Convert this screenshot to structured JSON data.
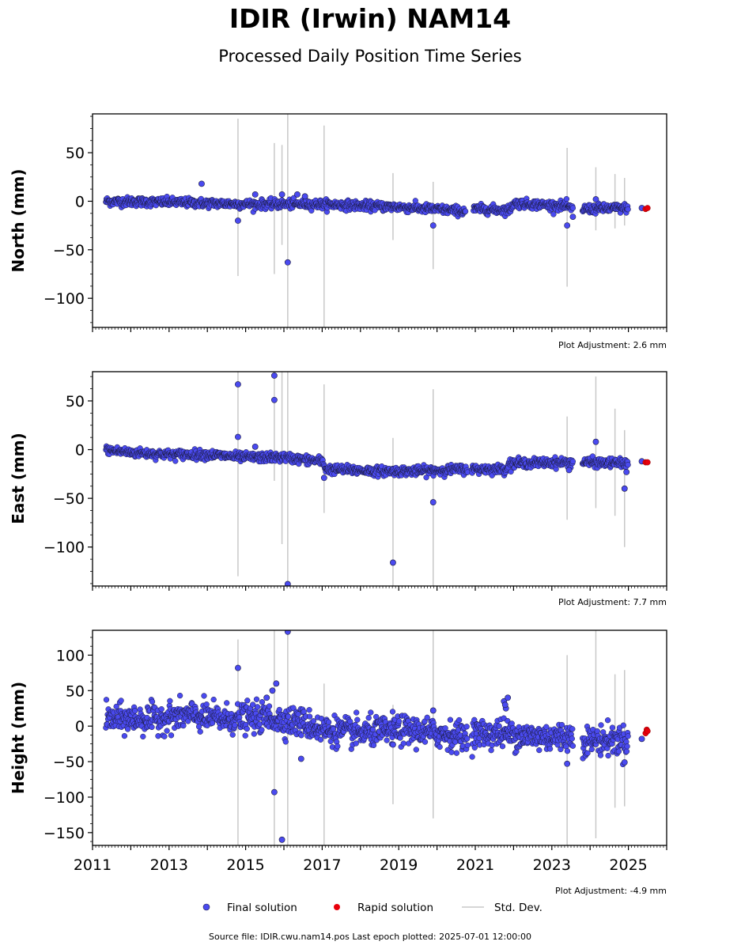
{
  "title": "IDIR (Irwin) NAM14",
  "subtitle": "Processed Daily Position Time Series",
  "footer": "Source file: IDIR.cwu.nam14.pos  Last epoch plotted: 2025-07-01 12:00:00",
  "legend": {
    "final": "Final solution",
    "rapid": "Rapid solution",
    "std": "Std. Dev."
  },
  "colors": {
    "final": "#4a4af0",
    "final_edge": "#1a1a3a",
    "rapid": "#e8000b",
    "std": "#c8c8c8"
  },
  "chart_data": [
    {
      "type": "scatter",
      "ylabel": "North (mm)",
      "adjustment": "Plot Adjustment: 2.6 mm",
      "xlim": [
        2011,
        2026
      ],
      "ylim": [
        -130,
        90
      ],
      "yticks": [
        50,
        0,
        -50,
        -100
      ],
      "ytick_labels": [
        "50",
        "0",
        "−50",
        "−100"
      ],
      "trend": [
        [
          2011.3,
          0
        ],
        [
          2013,
          -1
        ],
        [
          2015,
          -3
        ],
        [
          2017,
          -3
        ],
        [
          2019,
          -6
        ],
        [
          2020.7,
          -10
        ],
        [
          2020.9,
          -10
        ],
        [
          2021,
          -8
        ],
        [
          2021.9,
          -9
        ],
        [
          2022,
          -2
        ],
        [
          2023.4,
          -5
        ],
        [
          2023.5,
          -8
        ],
        [
          2023.8,
          -8
        ],
        [
          2025,
          -7
        ]
      ],
      "gaps": [
        [
          2020.75,
          2020.95
        ],
        [
          2023.55,
          2023.8
        ],
        [
          2025.0,
          2025.3
        ]
      ],
      "outliers": [
        [
          2013.85,
          18
        ],
        [
          2014.8,
          -20
        ],
        [
          2015.25,
          7
        ],
        [
          2015.95,
          7
        ],
        [
          2016.1,
          -63
        ],
        [
          2016.35,
          7
        ],
        [
          2016.55,
          5
        ],
        [
          2019.9,
          -25
        ],
        [
          2023.4,
          -25
        ],
        [
          2023.55,
          -16
        ],
        [
          2024.15,
          2
        ],
        [
          2025.35,
          -7
        ]
      ],
      "rapid": [
        [
          2025.45,
          -8
        ],
        [
          2025.5,
          -7
        ]
      ],
      "std_bars": [
        [
          2014.8,
          -77,
          85
        ],
        [
          2015.75,
          -75,
          60
        ],
        [
          2015.95,
          -45,
          58
        ],
        [
          2016.1,
          -130,
          90
        ],
        [
          2017.05,
          -130,
          78
        ],
        [
          2018.85,
          -40,
          29
        ],
        [
          2019.9,
          -70,
          20
        ],
        [
          2023.4,
          -88,
          55
        ],
        [
          2024.15,
          -30,
          35
        ],
        [
          2024.65,
          -28,
          28
        ],
        [
          2024.9,
          -25,
          24
        ]
      ]
    },
    {
      "type": "scatter",
      "ylabel": "East (mm)",
      "adjustment": "Plot Adjustment: 7.7 mm",
      "xlim": [
        2011,
        2026
      ],
      "ylim": [
        -140,
        80
      ],
      "yticks": [
        50,
        0,
        -50,
        -100
      ],
      "ytick_labels": [
        "50",
        "0",
        "−50",
        "−100"
      ],
      "trend": [
        [
          2011.3,
          0
        ],
        [
          2012,
          -3
        ],
        [
          2013,
          -5
        ],
        [
          2014,
          -5
        ],
        [
          2015,
          -8
        ],
        [
          2016,
          -8
        ],
        [
          2017,
          -12
        ],
        [
          2017.1,
          -20
        ],
        [
          2018.5,
          -22
        ],
        [
          2019.5,
          -22
        ],
        [
          2020.75,
          -20
        ],
        [
          2020.9,
          -20
        ],
        [
          2021.8,
          -20
        ],
        [
          2021.9,
          -14
        ],
        [
          2023.4,
          -13
        ],
        [
          2023.5,
          -13
        ],
        [
          2023.8,
          -13
        ],
        [
          2025,
          -14
        ]
      ],
      "gaps": [
        [
          2020.8,
          2020.9
        ],
        [
          2023.55,
          2023.8
        ],
        [
          2025.0,
          2025.3
        ]
      ],
      "outliers": [
        [
          2014.8,
          67
        ],
        [
          2014.8,
          13
        ],
        [
          2015.25,
          3
        ],
        [
          2015.75,
          76
        ],
        [
          2015.75,
          51
        ],
        [
          2016.1,
          -138
        ],
        [
          2018.85,
          -116
        ],
        [
          2019.9,
          -54
        ],
        [
          2017.05,
          -29
        ],
        [
          2024.15,
          8
        ],
        [
          2024.9,
          -40
        ],
        [
          2024.95,
          -23
        ],
        [
          2023.45,
          -21
        ],
        [
          2025.35,
          -12
        ]
      ],
      "rapid": [
        [
          2025.45,
          -13
        ],
        [
          2025.5,
          -13
        ]
      ],
      "std_bars": [
        [
          2014.8,
          -130,
          80
        ],
        [
          2015.75,
          -32,
          80
        ],
        [
          2015.95,
          -97,
          80
        ],
        [
          2016.1,
          -140,
          80
        ],
        [
          2017.05,
          -65,
          67
        ],
        [
          2018.85,
          -140,
          12
        ],
        [
          2019.9,
          -140,
          62
        ],
        [
          2023.4,
          -72,
          34
        ],
        [
          2024.15,
          -60,
          75
        ],
        [
          2024.65,
          -68,
          42
        ],
        [
          2024.9,
          -100,
          20
        ]
      ]
    },
    {
      "type": "scatter",
      "ylabel": "Height (mm)",
      "adjustment": "Plot Adjustment: -4.9 mm",
      "xlim": [
        2011,
        2026
      ],
      "ylim": [
        -168,
        135
      ],
      "yticks": [
        100,
        50,
        0,
        -50,
        -100,
        -150
      ],
      "ytick_labels": [
        "100",
        "50",
        "0",
        "−50",
        "−100",
        "−150"
      ],
      "xticks": [
        2011,
        2013,
        2015,
        2017,
        2019,
        2021,
        2023,
        2025
      ],
      "xtick_labels": [
        "2011",
        "2013",
        "2015",
        "2017",
        "2019",
        "2021",
        "2023",
        "2025"
      ],
      "trend": [
        [
          2011.3,
          10
        ],
        [
          2012.5,
          10
        ],
        [
          2013.5,
          15
        ],
        [
          2014.5,
          10
        ],
        [
          2015.5,
          12
        ],
        [
          2016.5,
          5
        ],
        [
          2017,
          -5
        ],
        [
          2018,
          -10
        ],
        [
          2019,
          -5
        ],
        [
          2020,
          -10
        ],
        [
          2020.75,
          -15
        ],
        [
          2020.9,
          -10
        ],
        [
          2021.8,
          -10
        ],
        [
          2022.5,
          -15
        ],
        [
          2023.4,
          -15
        ],
        [
          2023.5,
          -15
        ],
        [
          2023.8,
          -20
        ],
        [
          2025,
          -20
        ]
      ],
      "gaps": [
        [
          2020.8,
          2020.9
        ],
        [
          2023.55,
          2023.8
        ],
        [
          2025.0,
          2025.3
        ]
      ],
      "outliers": [
        [
          2014.8,
          82
        ],
        [
          2015.55,
          40
        ],
        [
          2015.8,
          60
        ],
        [
          2015.7,
          50
        ],
        [
          2016.1,
          133
        ],
        [
          2015.95,
          -160
        ],
        [
          2015.75,
          -93
        ],
        [
          2016.45,
          -46
        ],
        [
          2018.85,
          -26
        ],
        [
          2019.9,
          22
        ],
        [
          2021.75,
          35
        ],
        [
          2021.8,
          25
        ],
        [
          2021.85,
          40
        ],
        [
          2021.78,
          30
        ],
        [
          2023.4,
          -53
        ],
        [
          2024.9,
          -51
        ],
        [
          2025.35,
          -18
        ]
      ],
      "rapid": [
        [
          2025.45,
          -10
        ],
        [
          2025.48,
          -5
        ],
        [
          2025.5,
          -7
        ]
      ],
      "std_bars": [
        [
          2014.8,
          -168,
          122
        ],
        [
          2015.75,
          -168,
          135
        ],
        [
          2016.1,
          -168,
          135
        ],
        [
          2017.05,
          -168,
          60
        ],
        [
          2018.85,
          -110,
          30
        ],
        [
          2019.9,
          -130,
          135
        ],
        [
          2023.4,
          -168,
          100
        ],
        [
          2024.15,
          -158,
          135
        ],
        [
          2024.65,
          -115,
          73
        ],
        [
          2024.9,
          -113,
          79
        ]
      ]
    }
  ]
}
